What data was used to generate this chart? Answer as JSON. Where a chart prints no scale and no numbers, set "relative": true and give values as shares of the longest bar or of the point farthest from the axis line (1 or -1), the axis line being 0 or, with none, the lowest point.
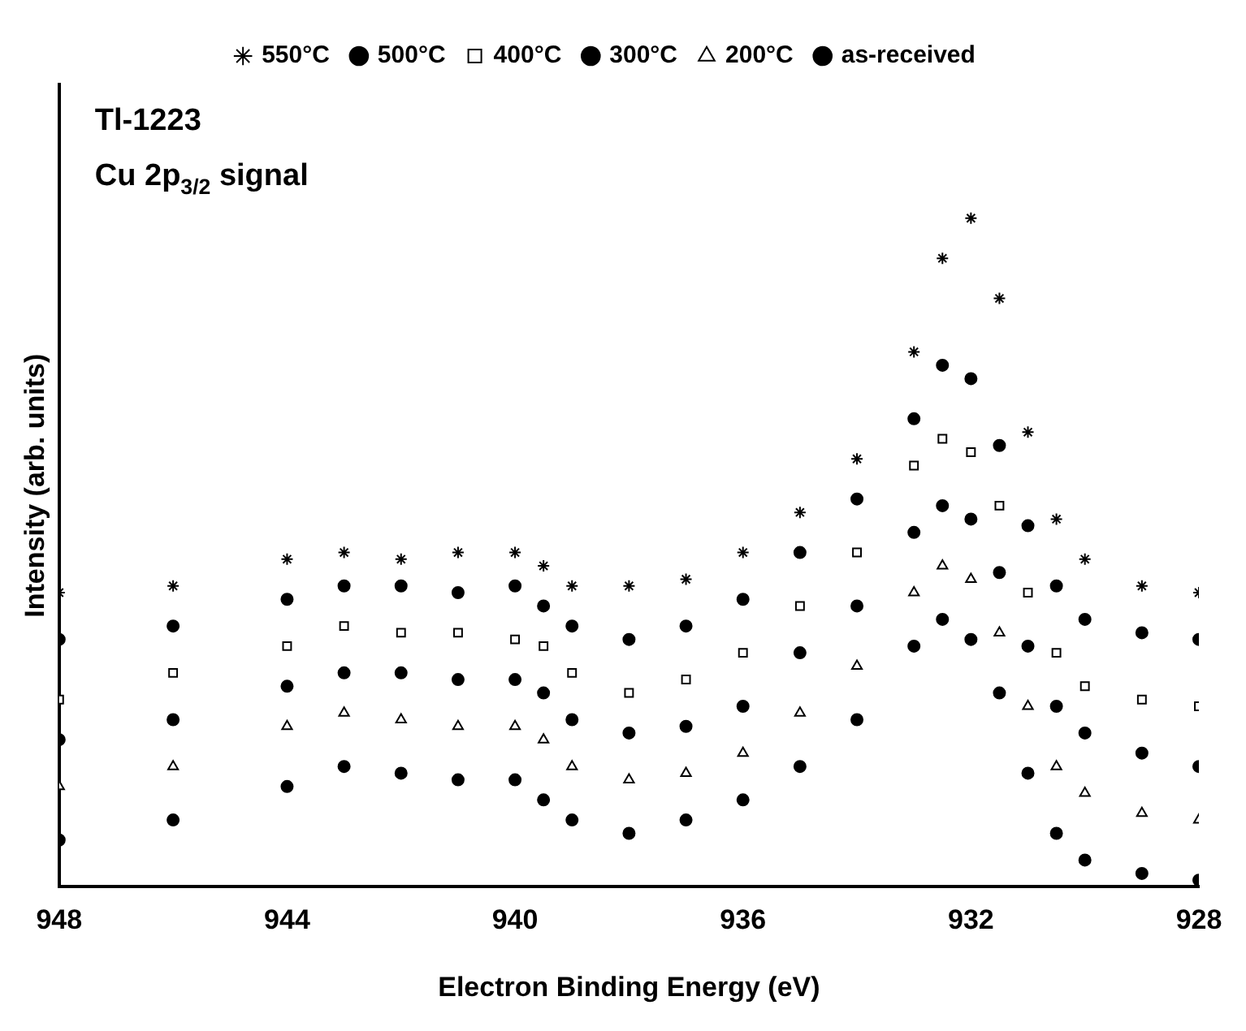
{
  "chart_data": {
    "type": "scatter",
    "xlabel": "Electron Binding Energy (eV)",
    "ylabel": "Intensity (arb. units)",
    "relative": true,
    "xlim": [
      948,
      928
    ],
    "xticks": [
      948,
      944,
      940,
      936,
      932,
      928
    ],
    "grid": false,
    "legend": "top",
    "annotations": [
      "Tl-1223",
      "Cu 2p$_{3/2}$ signal"
    ],
    "x": [
      948,
      946,
      944,
      943,
      942,
      941,
      940,
      939.5,
      939,
      938,
      937,
      936,
      935,
      934,
      933,
      932.5,
      932,
      931.5,
      931,
      930.5,
      930,
      929,
      928
    ],
    "series": [
      {
        "name": "550°C",
        "color": "#000000",
        "marker": "cross",
        "values": [
          0.44,
          0.45,
          0.49,
          0.5,
          0.49,
          0.5,
          0.5,
          0.48,
          0.45,
          0.45,
          0.46,
          0.5,
          0.56,
          0.64,
          0.8,
          0.94,
          1,
          0.88,
          0.68,
          0.55,
          0.49,
          0.45,
          0.44
        ]
      },
      {
        "name": "500°C",
        "color": "#000000",
        "marker": "circle",
        "values": [
          0.37,
          0.39,
          0.43,
          0.45,
          0.45,
          0.44,
          0.45,
          0.42,
          0.39,
          0.37,
          0.39,
          0.43,
          0.5,
          0.58,
          0.7,
          0.78,
          0.76,
          0.66,
          0.54,
          0.45,
          0.4,
          0.38,
          0.37
        ]
      },
      {
        "name": "400°C",
        "color": "#000000",
        "marker": "square",
        "values": [
          0.28,
          0.32,
          0.36,
          0.39,
          0.38,
          0.38,
          0.37,
          0.36,
          0.32,
          0.29,
          0.31,
          0.35,
          0.42,
          0.5,
          0.63,
          0.67,
          0.65,
          0.57,
          0.44,
          0.35,
          0.3,
          0.28,
          0.27
        ]
      },
      {
        "name": "300°C",
        "color": "#000000",
        "marker": "circle",
        "values": [
          0.22,
          0.25,
          0.3,
          0.32,
          0.32,
          0.31,
          0.31,
          0.29,
          0.25,
          0.23,
          0.24,
          0.27,
          0.35,
          0.42,
          0.53,
          0.57,
          0.55,
          0.47,
          0.36,
          0.27,
          0.23,
          0.2,
          0.18
        ]
      },
      {
        "name": "200°C",
        "color": "#000000",
        "marker": "triangle",
        "values": [
          0.15,
          0.18,
          0.24,
          0.26,
          0.25,
          0.24,
          0.24,
          0.22,
          0.18,
          0.16,
          0.17,
          0.2,
          0.26,
          0.33,
          0.44,
          0.48,
          0.46,
          0.38,
          0.27,
          0.18,
          0.14,
          0.11,
          0.1
        ]
      },
      {
        "name": "as-received",
        "color": "#000000",
        "marker": "circle",
        "values": [
          0.07,
          0.1,
          0.15,
          0.18,
          0.17,
          0.16,
          0.16,
          0.13,
          0.1,
          0.08,
          0.1,
          0.13,
          0.18,
          0.25,
          0.36,
          0.4,
          0.37,
          0.29,
          0.17,
          0.08,
          0.04,
          0.02,
          0.01
        ]
      }
    ]
  }
}
